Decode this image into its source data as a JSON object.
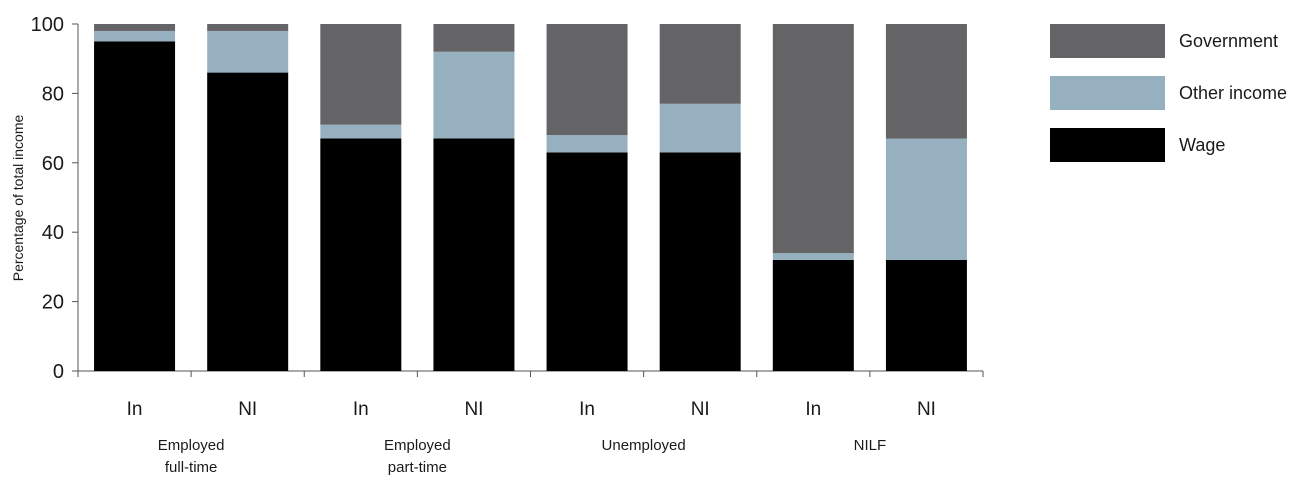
{
  "chart_data": {
    "type": "bar",
    "stacked": true,
    "ylabel": "Percentage of total income",
    "ylim": [
      0,
      100
    ],
    "yticks": [
      0,
      20,
      40,
      60,
      80,
      100
    ],
    "categories": [
      "In",
      "NI",
      "In",
      "NI",
      "In",
      "NI",
      "In",
      "NI"
    ],
    "groups": [
      {
        "label_lines": [
          "Employed",
          "full-time"
        ]
      },
      {
        "label_lines": [
          "Employed",
          "part-time"
        ]
      },
      {
        "label_lines": [
          "Unemployed"
        ]
      },
      {
        "label_lines": [
          "NILF"
        ]
      }
    ],
    "series": [
      {
        "name": "Wage",
        "color": "#000000",
        "values": [
          95,
          86,
          67,
          67,
          63,
          63,
          32,
          32
        ]
      },
      {
        "name": "Other income",
        "color": "#97b0bf",
        "values": [
          3,
          12,
          4,
          25,
          5,
          14,
          2,
          35
        ]
      },
      {
        "name": "Government",
        "color": "#646466",
        "values": [
          2,
          2,
          29,
          8,
          32,
          23,
          66,
          33
        ]
      }
    ],
    "legend": {
      "position": "right",
      "order": [
        "Government",
        "Other income",
        "Wage"
      ]
    },
    "grid": false
  }
}
